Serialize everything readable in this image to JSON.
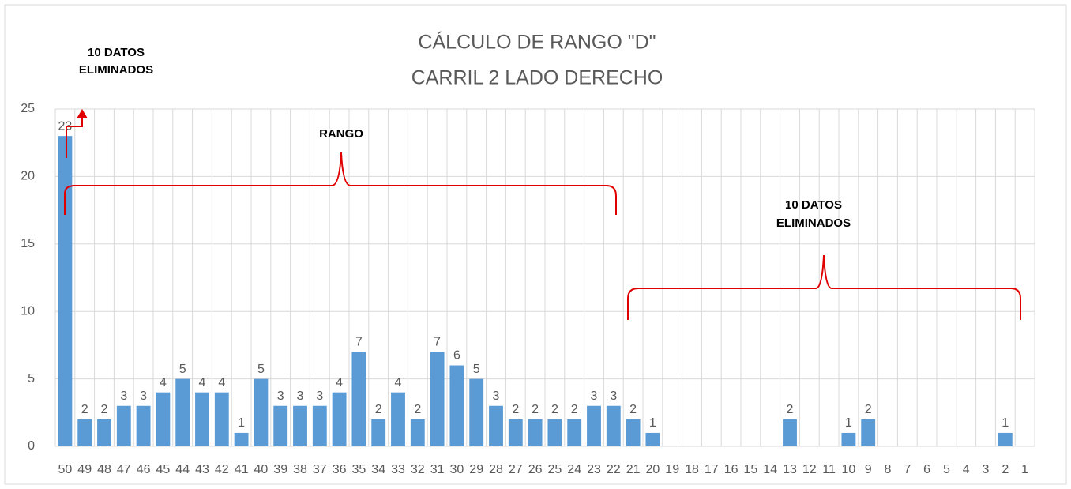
{
  "chart_data": {
    "type": "bar",
    "title": [
      "CÁLCULO DE RANGO \"D\"",
      "CARRIL 2 LADO DERECHO"
    ],
    "categories": [
      "50",
      "49",
      "48",
      "47",
      "46",
      "45",
      "44",
      "43",
      "42",
      "41",
      "40",
      "39",
      "38",
      "37",
      "36",
      "35",
      "34",
      "33",
      "32",
      "31",
      "30",
      "29",
      "28",
      "27",
      "26",
      "25",
      "24",
      "23",
      "22",
      "21",
      "20",
      "19",
      "18",
      "17",
      "16",
      "15",
      "14",
      "13",
      "12",
      "11",
      "10",
      "9",
      "8",
      "7",
      "6",
      "5",
      "4",
      "3",
      "2",
      "1"
    ],
    "values": [
      23,
      2,
      2,
      3,
      3,
      4,
      5,
      4,
      4,
      1,
      5,
      3,
      3,
      3,
      4,
      7,
      2,
      4,
      2,
      7,
      6,
      5,
      3,
      2,
      2,
      2,
      2,
      3,
      3,
      2,
      1,
      null,
      null,
      null,
      null,
      null,
      null,
      2,
      null,
      null,
      1,
      2,
      null,
      null,
      null,
      null,
      null,
      null,
      1,
      null
    ],
    "color": "#5b9bd5",
    "ylim": [
      0,
      25
    ],
    "yticks": [
      0,
      5,
      10,
      15,
      20,
      25
    ],
    "grid": true,
    "annotations": [
      [
        "10 DATOS",
        "ELIMINADOS"
      ],
      [
        "RANGO"
      ],
      [
        "10 DATOS",
        "ELIMINADOS"
      ]
    ]
  }
}
